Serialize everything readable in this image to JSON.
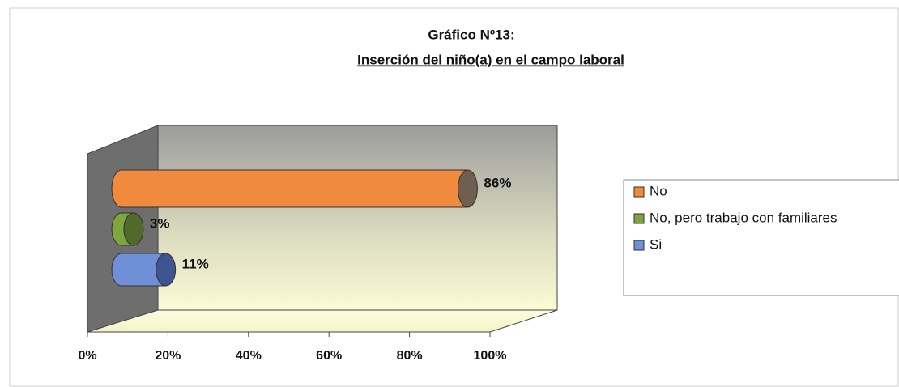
{
  "chart_data": {
    "type": "bar",
    "orientation": "horizontal",
    "title": "Gráfico Nº13:",
    "subtitle": "Inserción del niño(a) en el campo laboral",
    "categories": [
      null
    ],
    "series": [
      {
        "name": "No",
        "color": "#f08a3c",
        "values": [
          86
        ],
        "value_labels": [
          "86%"
        ]
      },
      {
        "name": "No, pero trabajo con familiares",
        "color": "#7ea63e",
        "values": [
          3
        ],
        "value_labels": [
          "3%"
        ]
      },
      {
        "name": "Si",
        "color": "#6f8fd6",
        "values": [
          11
        ],
        "value_labels": [
          "11%"
        ]
      }
    ],
    "xlim": [
      0,
      100
    ],
    "xticks": [
      {
        "value": 0,
        "label": "0%"
      },
      {
        "value": 20,
        "label": "20%"
      },
      {
        "value": 40,
        "label": "40%"
      },
      {
        "value": 60,
        "label": "60%"
      },
      {
        "value": 80,
        "label": "80%"
      },
      {
        "value": 100,
        "label": "100%"
      }
    ],
    "legend": "right"
  }
}
